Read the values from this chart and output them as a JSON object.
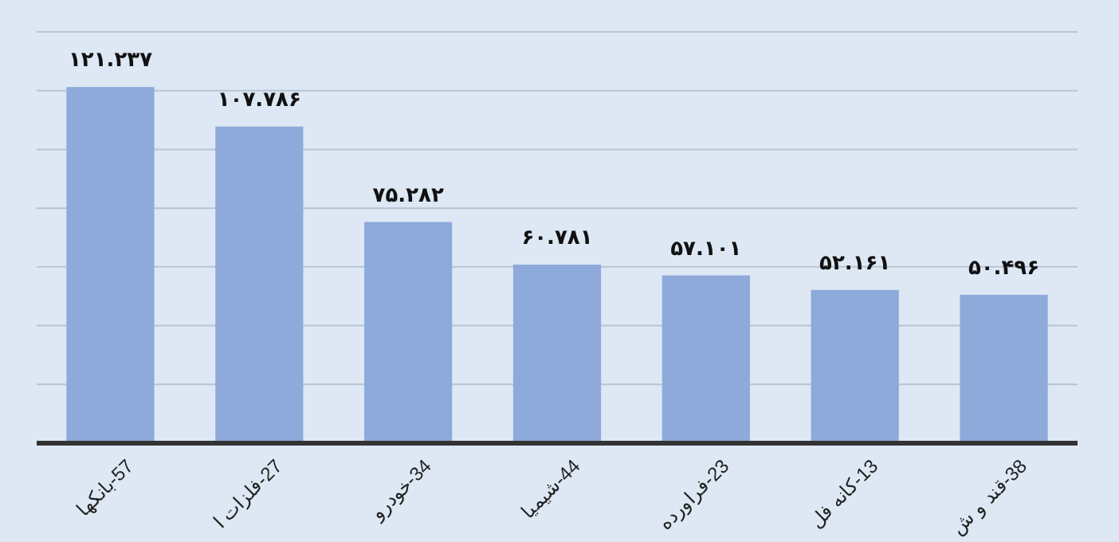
{
  "chart_data": {
    "type": "bar",
    "categories": [
      "57-بانکها",
      "27-فلزات ا",
      "34-خودرو",
      "44-شیمیا",
      "23-فراورده",
      "13-کانه فل",
      "38-قند و ش"
    ],
    "values": [
      121.237,
      107.786,
      75.282,
      60.781,
      57.101,
      52.161,
      50.496
    ],
    "value_labels": [
      "۱۲۱.۲۳۷",
      "۱۰۷.۷۸۶",
      "۷۵.۲۸۲",
      "۶۰.۷۸۱",
      "۵۷.۱۰۱",
      "۵۲.۱۶۱",
      "۵۰.۴۹۶"
    ],
    "color": "#8eaadb",
    "ylim": [
      0,
      140
    ],
    "yticks": [
      {
        "value": 0,
        "label": null
      },
      {
        "value": 20,
        "label": null
      },
      {
        "value": 40,
        "label": null
      },
      {
        "value": 60,
        "label": null
      },
      {
        "value": 80,
        "label": null
      },
      {
        "value": 100,
        "label": null
      },
      {
        "value": 120,
        "label": null
      },
      {
        "value": 140,
        "label": null
      }
    ],
    "grid": "y",
    "tick_labels": "x"
  }
}
